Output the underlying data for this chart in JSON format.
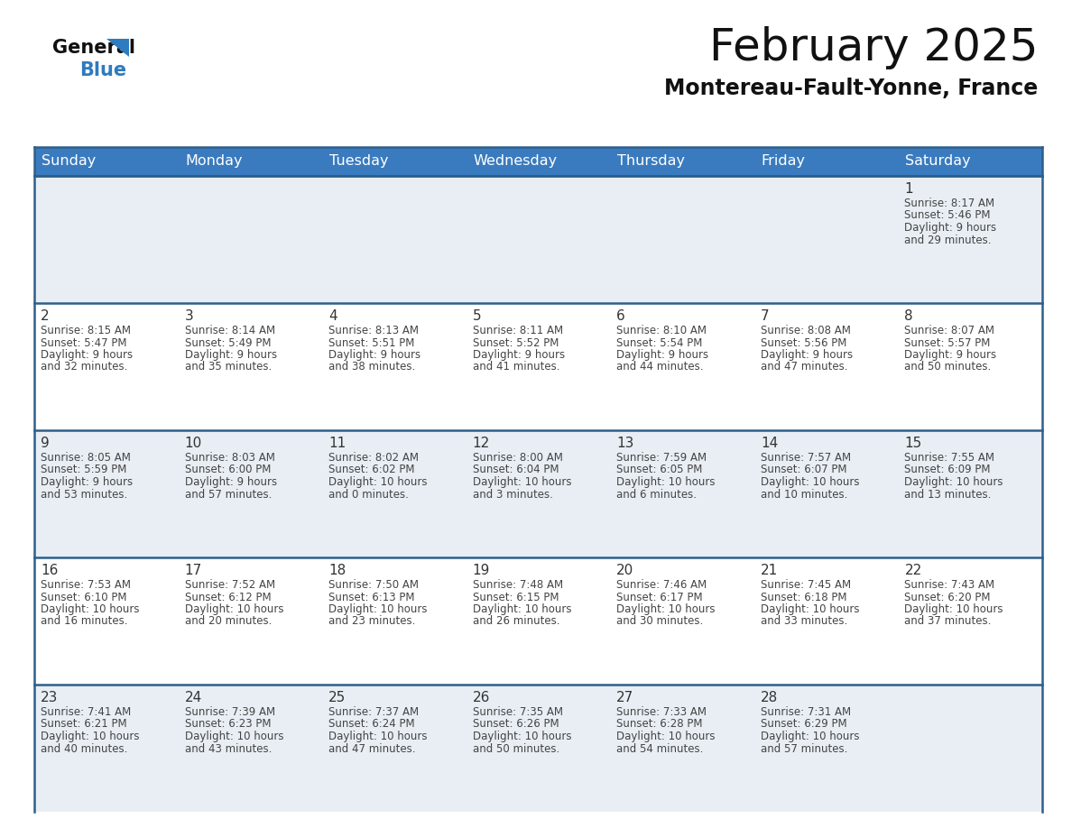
{
  "title": "February 2025",
  "subtitle": "Montereau-Fault-Yonne, France",
  "header_color": "#3a7bbf",
  "header_text_color": "#ffffff",
  "day_names": [
    "Sunday",
    "Monday",
    "Tuesday",
    "Wednesday",
    "Thursday",
    "Friday",
    "Saturday"
  ],
  "bg_color": "#ffffff",
  "cell_bg_light": "#e8eef4",
  "cell_bg_white": "#ffffff",
  "separator_color": "#2e5f8a",
  "text_color": "#333333",
  "logo_general_color": "#111111",
  "logo_blue_color": "#2e7bbf",
  "days": [
    {
      "date": 1,
      "row": 0,
      "col": 6,
      "sunrise": "8:17 AM",
      "sunset": "5:46 PM",
      "daylight": "9 hours and 29 minutes."
    },
    {
      "date": 2,
      "row": 1,
      "col": 0,
      "sunrise": "8:15 AM",
      "sunset": "5:47 PM",
      "daylight": "9 hours and 32 minutes."
    },
    {
      "date": 3,
      "row": 1,
      "col": 1,
      "sunrise": "8:14 AM",
      "sunset": "5:49 PM",
      "daylight": "9 hours and 35 minutes."
    },
    {
      "date": 4,
      "row": 1,
      "col": 2,
      "sunrise": "8:13 AM",
      "sunset": "5:51 PM",
      "daylight": "9 hours and 38 minutes."
    },
    {
      "date": 5,
      "row": 1,
      "col": 3,
      "sunrise": "8:11 AM",
      "sunset": "5:52 PM",
      "daylight": "9 hours and 41 minutes."
    },
    {
      "date": 6,
      "row": 1,
      "col": 4,
      "sunrise": "8:10 AM",
      "sunset": "5:54 PM",
      "daylight": "9 hours and 44 minutes."
    },
    {
      "date": 7,
      "row": 1,
      "col": 5,
      "sunrise": "8:08 AM",
      "sunset": "5:56 PM",
      "daylight": "9 hours and 47 minutes."
    },
    {
      "date": 8,
      "row": 1,
      "col": 6,
      "sunrise": "8:07 AM",
      "sunset": "5:57 PM",
      "daylight": "9 hours and 50 minutes."
    },
    {
      "date": 9,
      "row": 2,
      "col": 0,
      "sunrise": "8:05 AM",
      "sunset": "5:59 PM",
      "daylight": "9 hours and 53 minutes."
    },
    {
      "date": 10,
      "row": 2,
      "col": 1,
      "sunrise": "8:03 AM",
      "sunset": "6:00 PM",
      "daylight": "9 hours and 57 minutes."
    },
    {
      "date": 11,
      "row": 2,
      "col": 2,
      "sunrise": "8:02 AM",
      "sunset": "6:02 PM",
      "daylight": "10 hours and 0 minutes."
    },
    {
      "date": 12,
      "row": 2,
      "col": 3,
      "sunrise": "8:00 AM",
      "sunset": "6:04 PM",
      "daylight": "10 hours and 3 minutes."
    },
    {
      "date": 13,
      "row": 2,
      "col": 4,
      "sunrise": "7:59 AM",
      "sunset": "6:05 PM",
      "daylight": "10 hours and 6 minutes."
    },
    {
      "date": 14,
      "row": 2,
      "col": 5,
      "sunrise": "7:57 AM",
      "sunset": "6:07 PM",
      "daylight": "10 hours and 10 minutes."
    },
    {
      "date": 15,
      "row": 2,
      "col": 6,
      "sunrise": "7:55 AM",
      "sunset": "6:09 PM",
      "daylight": "10 hours and 13 minutes."
    },
    {
      "date": 16,
      "row": 3,
      "col": 0,
      "sunrise": "7:53 AM",
      "sunset": "6:10 PM",
      "daylight": "10 hours and 16 minutes."
    },
    {
      "date": 17,
      "row": 3,
      "col": 1,
      "sunrise": "7:52 AM",
      "sunset": "6:12 PM",
      "daylight": "10 hours and 20 minutes."
    },
    {
      "date": 18,
      "row": 3,
      "col": 2,
      "sunrise": "7:50 AM",
      "sunset": "6:13 PM",
      "daylight": "10 hours and 23 minutes."
    },
    {
      "date": 19,
      "row": 3,
      "col": 3,
      "sunrise": "7:48 AM",
      "sunset": "6:15 PM",
      "daylight": "10 hours and 26 minutes."
    },
    {
      "date": 20,
      "row": 3,
      "col": 4,
      "sunrise": "7:46 AM",
      "sunset": "6:17 PM",
      "daylight": "10 hours and 30 minutes."
    },
    {
      "date": 21,
      "row": 3,
      "col": 5,
      "sunrise": "7:45 AM",
      "sunset": "6:18 PM",
      "daylight": "10 hours and 33 minutes."
    },
    {
      "date": 22,
      "row": 3,
      "col": 6,
      "sunrise": "7:43 AM",
      "sunset": "6:20 PM",
      "daylight": "10 hours and 37 minutes."
    },
    {
      "date": 23,
      "row": 4,
      "col": 0,
      "sunrise": "7:41 AM",
      "sunset": "6:21 PM",
      "daylight": "10 hours and 40 minutes."
    },
    {
      "date": 24,
      "row": 4,
      "col": 1,
      "sunrise": "7:39 AM",
      "sunset": "6:23 PM",
      "daylight": "10 hours and 43 minutes."
    },
    {
      "date": 25,
      "row": 4,
      "col": 2,
      "sunrise": "7:37 AM",
      "sunset": "6:24 PM",
      "daylight": "10 hours and 47 minutes."
    },
    {
      "date": 26,
      "row": 4,
      "col": 3,
      "sunrise": "7:35 AM",
      "sunset": "6:26 PM",
      "daylight": "10 hours and 50 minutes."
    },
    {
      "date": 27,
      "row": 4,
      "col": 4,
      "sunrise": "7:33 AM",
      "sunset": "6:28 PM",
      "daylight": "10 hours and 54 minutes."
    },
    {
      "date": 28,
      "row": 4,
      "col": 5,
      "sunrise": "7:31 AM",
      "sunset": "6:29 PM",
      "daylight": "10 hours and 57 minutes."
    }
  ],
  "num_rows": 5,
  "figsize": [
    11.88,
    9.18
  ]
}
